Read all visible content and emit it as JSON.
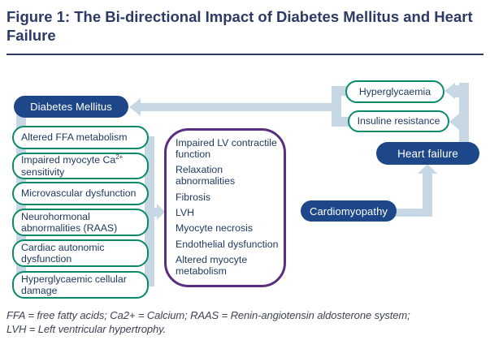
{
  "title": "Figure 1: The Bi-directional Impact of Diabetes Mellitus and Heart Failure",
  "colors": {
    "node_navy": "#1d4789",
    "outline_green": "#0a8a68",
    "outline_purple": "#5b2d7e",
    "connector_blue": "#c7d7e3",
    "title_navy": "#2c3a66"
  },
  "nodes": {
    "diabetes_mellitus": "Diabetes Mellitus",
    "heart_failure": "Heart failure",
    "cardiomyopathy": "Cardiomyopathy",
    "hyperglycaemia": "Hyperglycaemia",
    "insulin_resistance": "Insuline resistance"
  },
  "dm_factors": [
    {
      "label": "Altered FFA metabolism"
    },
    {
      "pre": "Impaired myocyte Ca",
      "sup": "2+",
      "post": "sensitivity"
    },
    {
      "label": "Microvascular dysfunction"
    },
    {
      "label": "Neurohormonal abnormalities (RAAS)"
    },
    {
      "label": "Cardiac autonomic dysfunction"
    },
    {
      "label": "Hyperglycaemic cellular damage"
    }
  ],
  "cardiomyopathy_effects": [
    "Impaired LV contractile function",
    "Relaxation abnormalities",
    "Fibrosis",
    "LVH",
    "Myocyte necrosis",
    "Endothelial dysfunction",
    "Altered myocyte metabolism"
  ],
  "footnote_lines": [
    "FFA = free fatty acids; Ca2+ = Calcium; RAAS = Renin-angiotensin aldosterone system;",
    "LVH = Left ventricular hypertrophy."
  ]
}
